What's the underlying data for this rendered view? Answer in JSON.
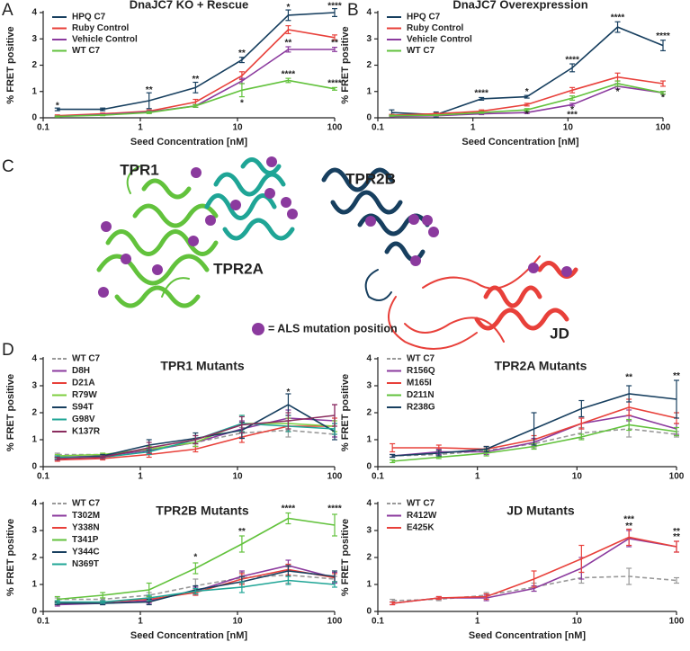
{
  "panel_labels": [
    "A",
    "B",
    "C",
    "D"
  ],
  "structure": {
    "labels": [
      {
        "text": "TPR1",
        "color": "#62c23c"
      },
      {
        "text": "TPR2A",
        "color": "#1fa596"
      },
      {
        "text": "TPR2B",
        "color": "#173f5f"
      },
      {
        "text": "JD",
        "color": "#e8403a"
      }
    ],
    "legend": "= ALS mutation position",
    "marker_color": "#8b3a9e"
  },
  "chart_data": [
    {
      "type": "line",
      "title": "DnaJC7 KO + Rescue",
      "x_label": "Seed Concentration [nM]",
      "y_label": "% FRET positive",
      "xscale": "log",
      "xlim": [
        0.1,
        100
      ],
      "xticks": [
        0.1,
        1,
        10,
        100
      ],
      "ylim": [
        0,
        4
      ],
      "yticks": [
        0,
        1,
        2,
        3,
        4
      ],
      "legend": "upper left",
      "x": [
        0.14,
        0.41,
        1.23,
        3.7,
        11.1,
        33.3,
        100
      ],
      "series": [
        {
          "name": "HPQ C7",
          "color": "#173f5f",
          "values": [
            0.32,
            0.32,
            0.65,
            1.15,
            2.2,
            3.9,
            4.0
          ],
          "errors": [
            0.05,
            0.05,
            0.3,
            0.2,
            0.1,
            0.2,
            0.15
          ]
        },
        {
          "name": "Ruby Control",
          "color": "#e8403a",
          "values": [
            0.08,
            0.15,
            0.25,
            0.6,
            1.6,
            3.35,
            3.05
          ],
          "errors": [
            0.03,
            0.03,
            0.05,
            0.1,
            0.15,
            0.15,
            0.1
          ]
        },
        {
          "name": "Vehicle Control",
          "color": "#8b3a9e",
          "values": [
            0.05,
            0.12,
            0.22,
            0.45,
            1.4,
            2.6,
            2.6
          ],
          "errors": [
            0.02,
            0.02,
            0.04,
            0.05,
            0.1,
            0.1,
            0.08
          ]
        },
        {
          "name": "WT C7",
          "color": "#62c23c",
          "values": [
            0.05,
            0.1,
            0.2,
            0.45,
            1.05,
            1.42,
            1.1
          ],
          "errors": [
            0.02,
            0.02,
            0.04,
            0.05,
            0.25,
            0.08,
            0.05
          ]
        }
      ],
      "annotations": [
        {
          "x": 0.14,
          "y": 0.45,
          "text": "*",
          "color": "#173f5f"
        },
        {
          "x": 1.23,
          "y": 1.05,
          "text": "**",
          "color": "#173f5f"
        },
        {
          "x": 3.7,
          "y": 1.45,
          "text": "**",
          "color": "#173f5f"
        },
        {
          "x": 11.1,
          "y": 2.45,
          "text": "**",
          "color": "#173f5f"
        },
        {
          "x": 33.3,
          "y": 4.2,
          "text": "*",
          "color": "#173f5f"
        },
        {
          "x": 100,
          "y": 4.25,
          "text": "****",
          "color": "#173f5f"
        },
        {
          "x": 33.3,
          "y": 2.85,
          "text": "**",
          "color": "#8b3a9e"
        },
        {
          "x": 100,
          "y": 2.85,
          "text": "**",
          "color": "#8b3a9e"
        },
        {
          "x": 33.3,
          "y": 1.65,
          "text": "****",
          "color": "#62c23c"
        },
        {
          "x": 100,
          "y": 1.3,
          "text": "****",
          "color": "#62c23c"
        },
        {
          "x": 11.1,
          "y": 0.55,
          "text": "*",
          "color": "#62c23c"
        }
      ]
    },
    {
      "type": "line",
      "title": "DnaJC7 Overexpression",
      "x_label": "Seed Concentration [nM]",
      "y_label": "% FRET positive",
      "xscale": "log",
      "xlim": [
        0.1,
        100
      ],
      "xticks": [
        0.1,
        1,
        10,
        100
      ],
      "ylim": [
        0,
        4
      ],
      "yticks": [
        0,
        1,
        2,
        3,
        4
      ],
      "legend": "upper left",
      "x": [
        0.14,
        0.41,
        1.23,
        3.7,
        11.1,
        33.3,
        100
      ],
      "series": [
        {
          "name": "HPQ C7",
          "color": "#173f5f",
          "values": [
            0.2,
            0.12,
            0.72,
            0.8,
            1.9,
            3.45,
            2.75
          ],
          "errors": [
            0.1,
            0.1,
            0.05,
            0.05,
            0.15,
            0.2,
            0.2
          ]
        },
        {
          "name": "Ruby Control",
          "color": "#e8403a",
          "values": [
            0.1,
            0.15,
            0.25,
            0.5,
            1.05,
            1.55,
            1.3
          ],
          "errors": [
            0.03,
            0.03,
            0.05,
            0.05,
            0.1,
            0.15,
            0.1
          ]
        },
        {
          "name": "Vehicle Control",
          "color": "#8b3a9e",
          "values": [
            0.05,
            0.08,
            0.15,
            0.2,
            0.5,
            1.2,
            0.95
          ],
          "errors": [
            0.02,
            0.02,
            0.03,
            0.04,
            0.05,
            0.1,
            0.05
          ]
        },
        {
          "name": "WT C7",
          "color": "#62c23c",
          "values": [
            0.08,
            0.1,
            0.2,
            0.3,
            0.75,
            1.3,
            0.95
          ],
          "errors": [
            0.02,
            0.02,
            0.03,
            0.05,
            0.08,
            0.1,
            0.05
          ]
        }
      ],
      "annotations": [
        {
          "x": 1.23,
          "y": 0.92,
          "text": "****",
          "color": "#173f5f"
        },
        {
          "x": 3.7,
          "y": 0.98,
          "text": "*",
          "color": "#173f5f"
        },
        {
          "x": 11.1,
          "y": 2.2,
          "text": "****",
          "color": "#173f5f"
        },
        {
          "x": 33.3,
          "y": 3.8,
          "text": "****",
          "color": "#173f5f"
        },
        {
          "x": 100,
          "y": 3.1,
          "text": "****",
          "color": "#173f5f"
        },
        {
          "x": 3.7,
          "y": 0.12,
          "text": "*",
          "color": "#62c23c"
        },
        {
          "x": 11.1,
          "y": 0.3,
          "text": "*",
          "color": "#62c23c"
        },
        {
          "x": 11.1,
          "y": 0.1,
          "text": "***",
          "color": "#8b3a9e"
        },
        {
          "x": 33.3,
          "y": 0.98,
          "text": "*",
          "color": "#8b3a9e"
        },
        {
          "x": 100,
          "y": 0.75,
          "text": "*",
          "color": "#62c23c"
        }
      ]
    },
    {
      "type": "line",
      "title": "TPR1 Mutants",
      "title_color": "#62c23c",
      "y_label": "% FRET positive",
      "xscale": "log",
      "xlim": [
        0.1,
        100
      ],
      "xticks": [
        0.1,
        1,
        10,
        100
      ],
      "ylim": [
        0,
        4
      ],
      "yticks": [
        0,
        1,
        2,
        3,
        4
      ],
      "legend": "upper left",
      "x": [
        0.14,
        0.41,
        1.23,
        3.7,
        11.1,
        33.3,
        100
      ],
      "series": [
        {
          "name": "WT C7",
          "color": "#999999",
          "dash": true,
          "values": [
            0.45,
            0.45,
            0.6,
            0.9,
            1.25,
            1.35,
            1.2
          ],
          "errors": [
            0.05,
            0.05,
            0.1,
            0.15,
            0.2,
            0.25,
            0.1
          ]
        },
        {
          "name": "D8H",
          "color": "#8b3a9e",
          "values": [
            0.35,
            0.4,
            0.6,
            0.9,
            1.4,
            1.8,
            1.7
          ],
          "errors": [
            0.05,
            0.05,
            0.1,
            0.15,
            0.3,
            0.3,
            0.6
          ]
        },
        {
          "name": "D21A",
          "color": "#e8403a",
          "values": [
            0.25,
            0.3,
            0.45,
            0.65,
            1.1,
            1.5,
            1.5
          ],
          "errors": [
            0.05,
            0.05,
            0.1,
            0.1,
            0.2,
            0.2,
            0.3
          ]
        },
        {
          "name": "R79W",
          "color": "#7dcf3f",
          "values": [
            0.4,
            0.45,
            0.65,
            0.9,
            1.6,
            1.6,
            1.5
          ],
          "errors": [
            0.05,
            0.05,
            0.1,
            0.15,
            0.3,
            0.2,
            0.2
          ]
        },
        {
          "name": "S94T",
          "color": "#173f5f",
          "values": [
            0.3,
            0.4,
            0.8,
            1.05,
            1.35,
            2.3,
            1.3
          ],
          "errors": [
            0.05,
            0.05,
            0.2,
            0.2,
            0.3,
            0.4,
            0.3
          ]
        },
        {
          "name": "G98V",
          "color": "#1fa596",
          "values": [
            0.35,
            0.35,
            0.55,
            1.0,
            1.6,
            1.5,
            1.4
          ],
          "errors": [
            0.05,
            0.05,
            0.1,
            0.15,
            0.3,
            0.2,
            0.2
          ]
        },
        {
          "name": "K137R",
          "color": "#8a2c5e",
          "values": [
            0.3,
            0.35,
            0.7,
            1.0,
            1.55,
            1.7,
            1.9
          ],
          "errors": [
            0.05,
            0.05,
            0.2,
            0.15,
            0.3,
            0.3,
            0.4
          ]
        }
      ],
      "annotations": [
        {
          "x": 33.3,
          "y": 2.75,
          "text": "*",
          "color": "#173f5f"
        }
      ]
    },
    {
      "type": "line",
      "title": "TPR2A Mutants",
      "title_color": "#1fa596",
      "y_label": "% FRET positive",
      "xscale": "log",
      "xlim": [
        0.1,
        100
      ],
      "xticks": [
        0.1,
        1,
        10,
        100
      ],
      "ylim": [
        0,
        4
      ],
      "yticks": [
        0,
        1,
        2,
        3,
        4
      ],
      "legend": "upper left",
      "x": [
        0.14,
        0.41,
        1.23,
        3.7,
        11.1,
        33.3,
        100
      ],
      "series": [
        {
          "name": "WT C7",
          "color": "#999999",
          "dash": true,
          "values": [
            0.4,
            0.45,
            0.6,
            0.85,
            1.25,
            1.4,
            1.2
          ],
          "errors": [
            0.05,
            0.05,
            0.1,
            0.15,
            0.2,
            0.3,
            0.1
          ]
        },
        {
          "name": "R156Q",
          "color": "#8b3a9e",
          "values": [
            0.4,
            0.55,
            0.55,
            0.9,
            1.6,
            1.9,
            1.4
          ],
          "errors": [
            0.05,
            0.1,
            0.1,
            0.15,
            0.2,
            0.2,
            0.2
          ]
        },
        {
          "name": "M165I",
          "color": "#e8403a",
          "values": [
            0.7,
            0.7,
            0.65,
            1.0,
            1.6,
            2.2,
            1.8
          ],
          "errors": [
            0.15,
            0.1,
            0.1,
            0.15,
            0.2,
            0.3,
            0.2
          ]
        },
        {
          "name": "D211N",
          "color": "#62c23c",
          "values": [
            0.2,
            0.35,
            0.5,
            0.75,
            1.1,
            1.55,
            1.3
          ],
          "errors": [
            0.05,
            0.05,
            0.1,
            0.1,
            0.1,
            0.2,
            0.15
          ]
        },
        {
          "name": "R238G",
          "color": "#173f5f",
          "values": [
            0.4,
            0.5,
            0.65,
            1.4,
            2.15,
            2.7,
            2.5
          ],
          "errors": [
            0.05,
            0.1,
            0.1,
            0.6,
            0.3,
            0.3,
            0.7
          ]
        }
      ],
      "annotations": [
        {
          "x": 33.3,
          "y": 3.3,
          "text": "**",
          "color": "#173f5f"
        },
        {
          "x": 100,
          "y": 3.35,
          "text": "**",
          "color": "#173f5f"
        }
      ]
    },
    {
      "type": "line",
      "title": "TPR2B Mutants",
      "title_color": "#173f5f",
      "x_label": "Seed Concentration [nM]",
      "y_label": "% FRET positive",
      "xscale": "log",
      "xlim": [
        0.1,
        100
      ],
      "xticks": [
        0.1,
        1,
        10,
        100
      ],
      "ylim": [
        0,
        4
      ],
      "yticks": [
        0,
        1,
        2,
        3,
        4
      ],
      "legend": "upper left",
      "x": [
        0.14,
        0.41,
        1.23,
        3.7,
        11.1,
        33.3,
        100
      ],
      "series": [
        {
          "name": "WT C7",
          "color": "#999999",
          "dash": true,
          "values": [
            0.45,
            0.45,
            0.6,
            0.95,
            1.25,
            1.35,
            1.2
          ],
          "errors": [
            0.05,
            0.05,
            0.1,
            0.25,
            0.2,
            0.3,
            0.1
          ]
        },
        {
          "name": "T302M",
          "color": "#8b3a9e",
          "values": [
            0.25,
            0.3,
            0.4,
            0.75,
            1.3,
            1.7,
            1.25
          ],
          "errors": [
            0.05,
            0.05,
            0.1,
            0.15,
            0.2,
            0.2,
            0.2
          ]
        },
        {
          "name": "Y338N",
          "color": "#e8403a",
          "values": [
            0.3,
            0.35,
            0.45,
            0.7,
            1.2,
            1.55,
            1.25
          ],
          "errors": [
            0.05,
            0.05,
            0.1,
            0.1,
            0.2,
            0.2,
            0.15
          ]
        },
        {
          "name": "T341P",
          "color": "#62c23c",
          "values": [
            0.45,
            0.6,
            0.8,
            1.6,
            2.5,
            3.45,
            3.2
          ],
          "errors": [
            0.1,
            0.1,
            0.25,
            0.2,
            0.3,
            0.2,
            0.4
          ]
        },
        {
          "name": "Y344C",
          "color": "#173f5f",
          "values": [
            0.3,
            0.3,
            0.35,
            0.8,
            1.1,
            1.5,
            1.3
          ],
          "errors": [
            0.05,
            0.05,
            0.1,
            0.15,
            0.2,
            0.2,
            0.2
          ]
        },
        {
          "name": "N369T",
          "color": "#1fa596",
          "values": [
            0.35,
            0.35,
            0.5,
            0.75,
            0.9,
            1.15,
            1.0
          ],
          "errors": [
            0.05,
            0.05,
            0.1,
            0.1,
            0.2,
            0.15,
            0.1
          ]
        }
      ],
      "annotations": [
        {
          "x": 3.7,
          "y": 2.0,
          "text": "*",
          "color": "#62c23c"
        },
        {
          "x": 11.1,
          "y": 2.95,
          "text": "**",
          "color": "#62c23c"
        },
        {
          "x": 33.3,
          "y": 3.8,
          "text": "****",
          "color": "#62c23c"
        },
        {
          "x": 100,
          "y": 3.8,
          "text": "****",
          "color": "#62c23c"
        }
      ]
    },
    {
      "type": "line",
      "title": "JD Mutants",
      "title_color": "#e8403a",
      "x_label": "Seed Concentration [nM]",
      "y_label": "% FRET positive",
      "xscale": "log",
      "xlim": [
        0.1,
        100
      ],
      "xticks": [
        0.1,
        1,
        10,
        100
      ],
      "ylim": [
        0,
        4
      ],
      "yticks": [
        0,
        1,
        2,
        3,
        4
      ],
      "legend": "upper left",
      "x": [
        0.14,
        0.41,
        1.23,
        3.7,
        11.1,
        33.3,
        100
      ],
      "series": [
        {
          "name": "WT C7",
          "color": "#999999",
          "dash": true,
          "values": [
            0.4,
            0.45,
            0.6,
            0.9,
            1.25,
            1.3,
            1.15
          ],
          "errors": [
            0.05,
            0.05,
            0.1,
            0.15,
            0.2,
            0.3,
            0.1
          ]
        },
        {
          "name": "R412W",
          "color": "#8b3a9e",
          "values": [
            0.3,
            0.5,
            0.5,
            0.85,
            1.6,
            2.7,
            2.4
          ],
          "errors": [
            0.05,
            0.05,
            0.1,
            0.1,
            0.4,
            0.3,
            0.2
          ]
        },
        {
          "name": "E425K",
          "color": "#e8403a",
          "values": [
            0.3,
            0.5,
            0.55,
            1.2,
            1.95,
            2.75,
            2.4
          ],
          "errors": [
            0.05,
            0.05,
            0.1,
            0.3,
            0.5,
            0.3,
            0.2
          ]
        }
      ],
      "annotations": [
        {
          "x": 33.3,
          "y": 3.4,
          "text": "***",
          "color": "#e8403a"
        },
        {
          "x": 33.3,
          "y": 3.15,
          "text": "**",
          "color": "#8b3a9e"
        },
        {
          "x": 100,
          "y": 2.95,
          "text": "**",
          "color": "#e8403a"
        },
        {
          "x": 100,
          "y": 2.75,
          "text": "**",
          "color": "#8b3a9e"
        }
      ]
    }
  ]
}
